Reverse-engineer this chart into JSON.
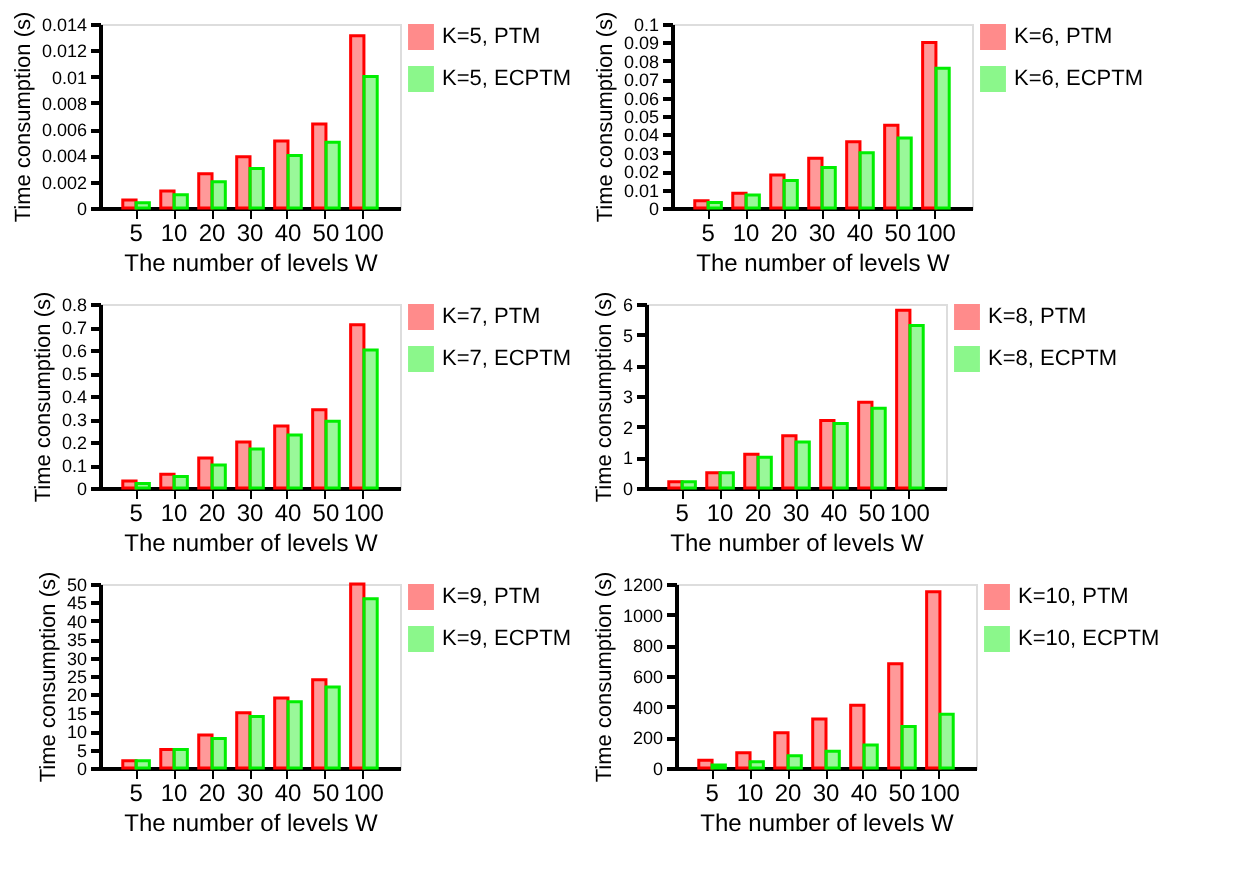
{
  "chart_data": [
    {
      "type": "bar",
      "categories": [
        "5",
        "10",
        "20",
        "30",
        "40",
        "50",
        "100"
      ],
      "xlabel": "The number of levels W",
      "ylabel": "Time consumption (s)",
      "ylim": [
        0,
        0.014
      ],
      "yticks": [
        0,
        0.002,
        0.004,
        0.006,
        0.008,
        0.01,
        0.012,
        0.014
      ],
      "legend": "right",
      "grid": false,
      "series": [
        {
          "name": "K=5, PTM",
          "color": "#ff0000",
          "values": [
            0.0006,
            0.0013,
            0.0026,
            0.0039,
            0.0051,
            0.0064,
            0.0131
          ]
        },
        {
          "name": "K=5, ECPTM",
          "color": "#00ee00",
          "values": [
            0.0004,
            0.001,
            0.002,
            0.003,
            0.004,
            0.005,
            0.01
          ]
        }
      ]
    },
    {
      "type": "bar",
      "categories": [
        "5",
        "10",
        "20",
        "30",
        "40",
        "50",
        "100"
      ],
      "xlabel": "The number of levels W",
      "ylabel": "Time consumption (s)",
      "ylim": [
        0,
        0.1
      ],
      "yticks": [
        0,
        0.01,
        0.02,
        0.03,
        0.04,
        0.05,
        0.06,
        0.07,
        0.08,
        0.09,
        0.1
      ],
      "legend": "right",
      "grid": false,
      "series": [
        {
          "name": "K=6, PTM",
          "color": "#ff0000",
          "values": [
            0.004,
            0.008,
            0.018,
            0.027,
            0.036,
            0.045,
            0.09
          ]
        },
        {
          "name": "K=6, ECPTM",
          "color": "#00ee00",
          "values": [
            0.003,
            0.007,
            0.015,
            0.022,
            0.03,
            0.038,
            0.076
          ]
        }
      ]
    },
    {
      "type": "bar",
      "categories": [
        "5",
        "10",
        "20",
        "30",
        "40",
        "50",
        "100"
      ],
      "xlabel": "The number of levels W",
      "ylabel": "Time consumption (s)",
      "ylim": [
        0,
        0.8
      ],
      "yticks": [
        0,
        0.1,
        0.2,
        0.3,
        0.4,
        0.5,
        0.6,
        0.7,
        0.8
      ],
      "legend": "right",
      "grid": false,
      "series": [
        {
          "name": "K=7, PTM",
          "color": "#ff0000",
          "values": [
            0.03,
            0.06,
            0.13,
            0.2,
            0.27,
            0.34,
            0.71
          ]
        },
        {
          "name": "K=7, ECPTM",
          "color": "#00ee00",
          "values": [
            0.02,
            0.05,
            0.1,
            0.17,
            0.23,
            0.29,
            0.6
          ]
        }
      ]
    },
    {
      "type": "bar",
      "categories": [
        "5",
        "10",
        "20",
        "30",
        "40",
        "50",
        "100"
      ],
      "xlabel": "The number of levels W",
      "ylabel": "Time consumption (s)",
      "ylim": [
        0,
        6
      ],
      "yticks": [
        0,
        1,
        2,
        3,
        4,
        5,
        6
      ],
      "legend": "right",
      "grid": false,
      "series": [
        {
          "name": "K=8, PTM",
          "color": "#ff0000",
          "values": [
            0.2,
            0.5,
            1.1,
            1.7,
            2.2,
            2.8,
            5.8
          ]
        },
        {
          "name": "K=8, ECPTM",
          "color": "#00ee00",
          "values": [
            0.2,
            0.5,
            1,
            1.5,
            2.1,
            2.6,
            5.3
          ]
        }
      ]
    },
    {
      "type": "bar",
      "categories": [
        "5",
        "10",
        "20",
        "30",
        "40",
        "50",
        "100"
      ],
      "xlabel": "The number of levels W",
      "ylabel": "Time consumption (s)",
      "ylim": [
        0,
        50
      ],
      "yticks": [
        0,
        5,
        10,
        15,
        20,
        25,
        30,
        35,
        40,
        45,
        50
      ],
      "legend": "right",
      "grid": false,
      "series": [
        {
          "name": "K=9, PTM",
          "color": "#ff0000",
          "values": [
            2,
            5,
            9,
            15,
            19,
            24,
            50
          ]
        },
        {
          "name": "K=9, ECPTM",
          "color": "#00ee00",
          "values": [
            2,
            5,
            8,
            14,
            18,
            22,
            46
          ]
        }
      ]
    },
    {
      "type": "bar",
      "categories": [
        "5",
        "10",
        "20",
        "30",
        "40",
        "50",
        "100"
      ],
      "xlabel": "The number of levels W",
      "ylabel": "Time consumption (s)",
      "ylim": [
        0,
        1200
      ],
      "yticks": [
        0,
        200,
        400,
        600,
        800,
        1000,
        1200
      ],
      "legend": "right",
      "grid": false,
      "series": [
        {
          "name": "K=10, PTM",
          "color": "#ff0000",
          "values": [
            50,
            100,
            230,
            320,
            410,
            680,
            1150
          ]
        },
        {
          "name": "K=10, ECPTM",
          "color": "#00ee00",
          "values": [
            20,
            40,
            80,
            110,
            150,
            270,
            350
          ]
        }
      ]
    }
  ]
}
